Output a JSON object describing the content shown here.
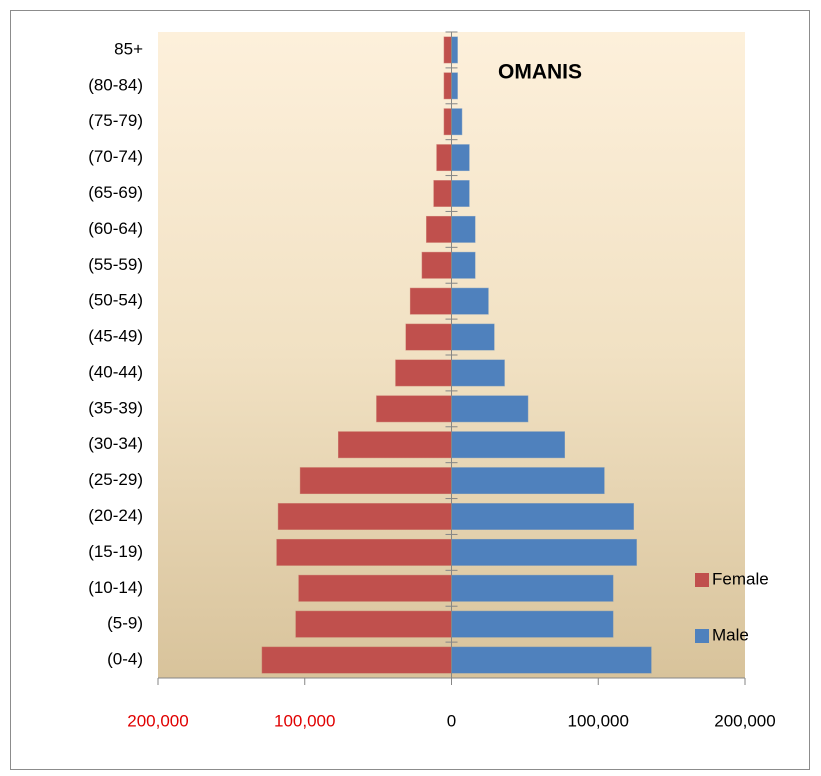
{
  "chart_data": {
    "type": "pyramid",
    "title": "OMANIS",
    "categories": [
      "(0-4)",
      "(5-9)",
      "(10-14)",
      "(15-19)",
      "(20-24)",
      "(25-29)",
      "(30-34)",
      "(35-39)",
      "(40-44)",
      "(45-49)",
      "(50-54)",
      "(55-59)",
      "(60-64)",
      "(65-69)",
      "(70-74)",
      "(75-79)",
      "(80-84)",
      "85+"
    ],
    "series": [
      {
        "name": "Female",
        "color": "#c0504d",
        "values": [
          -129000,
          -106000,
          -104000,
          -119000,
          -118000,
          -103000,
          -77000,
          -51000,
          -38000,
          -31000,
          -28000,
          -20000,
          -17000,
          -12000,
          -10000,
          -5000,
          -5000,
          -5000
        ]
      },
      {
        "name": "Male",
        "color": "#4f81bd",
        "values": [
          136000,
          110000,
          110000,
          126000,
          124000,
          104000,
          77000,
          52000,
          36000,
          29000,
          25000,
          16000,
          16000,
          12000,
          12000,
          7000,
          4000,
          4000
        ]
      }
    ],
    "xlim": [
      -200000,
      200000
    ],
    "xticks": [
      {
        "value": -200000,
        "label": "200,000"
      },
      {
        "value": -100000,
        "label": "100,000"
      },
      0,
      {
        "value": 100000,
        "label": "100,000"
      },
      {
        "value": 200000,
        "label": "200,000"
      }
    ],
    "xtick_label_colors": [
      "#e00000",
      "#e00000",
      "#000000",
      "#000000",
      "#000000"
    ],
    "legend": "right"
  }
}
